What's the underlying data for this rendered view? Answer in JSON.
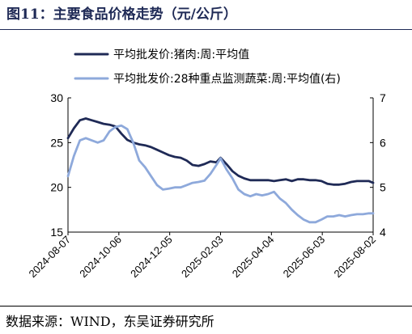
{
  "title": "图11：主要食品价格走势（元/公斤）",
  "source": "数据来源：WIND，东吴证券研究所",
  "chart_data": {
    "type": "line",
    "x_ticks": [
      "2024-08-07",
      "2024-10-06",
      "2024-12-05",
      "2025-02-03",
      "2025-04-04",
      "2025-06-03",
      "2025-08-02"
    ],
    "x_range": [
      "2024-08-07",
      "2025-08-02"
    ],
    "y_left": {
      "min": 15,
      "max": 30,
      "ticks": [
        15,
        20,
        25,
        30
      ]
    },
    "y_right": {
      "min": 4,
      "max": 7,
      "ticks": [
        4,
        5,
        6,
        7
      ]
    },
    "grid": false,
    "legend_position": "top",
    "series": [
      {
        "name": "平均批发价:猪肉:周:平均值",
        "axis": "left",
        "color": "#1f2a56",
        "points": [
          [
            "2024-08-07",
            25.5
          ],
          [
            "2024-08-14",
            26.6
          ],
          [
            "2024-08-21",
            27.5
          ],
          [
            "2024-08-28",
            27.7
          ],
          [
            "2024-09-04",
            27.5
          ],
          [
            "2024-09-11",
            27.3
          ],
          [
            "2024-09-18",
            27.1
          ],
          [
            "2024-09-25",
            27.0
          ],
          [
            "2024-10-02",
            26.8
          ],
          [
            "2024-10-09",
            26.0
          ],
          [
            "2024-10-16",
            25.3
          ],
          [
            "2024-10-23",
            25.0
          ],
          [
            "2024-10-30",
            24.8
          ],
          [
            "2024-11-06",
            24.7
          ],
          [
            "2024-11-13",
            24.5
          ],
          [
            "2024-11-20",
            24.2
          ],
          [
            "2024-11-27",
            23.9
          ],
          [
            "2024-12-04",
            23.6
          ],
          [
            "2024-12-11",
            23.4
          ],
          [
            "2024-12-18",
            23.3
          ],
          [
            "2024-12-25",
            23.0
          ],
          [
            "2025-01-01",
            22.5
          ],
          [
            "2025-01-08",
            22.4
          ],
          [
            "2025-01-15",
            22.6
          ],
          [
            "2025-01-22",
            22.9
          ],
          [
            "2025-01-29",
            22.8
          ],
          [
            "2025-02-03",
            23.3
          ],
          [
            "2025-02-10",
            22.6
          ],
          [
            "2025-02-17",
            21.8
          ],
          [
            "2025-02-24",
            21.3
          ],
          [
            "2025-03-03",
            21.0
          ],
          [
            "2025-03-10",
            20.8
          ],
          [
            "2025-03-17",
            20.8
          ],
          [
            "2025-03-24",
            20.8
          ],
          [
            "2025-03-31",
            20.8
          ],
          [
            "2025-04-07",
            20.7
          ],
          [
            "2025-04-14",
            20.8
          ],
          [
            "2025-04-21",
            20.9
          ],
          [
            "2025-04-28",
            20.7
          ],
          [
            "2025-05-05",
            20.9
          ],
          [
            "2025-05-12",
            20.9
          ],
          [
            "2025-05-19",
            20.8
          ],
          [
            "2025-05-26",
            20.8
          ],
          [
            "2025-06-02",
            20.7
          ],
          [
            "2025-06-09",
            20.4
          ],
          [
            "2025-06-16",
            20.3
          ],
          [
            "2025-06-23",
            20.3
          ],
          [
            "2025-06-30",
            20.4
          ],
          [
            "2025-07-07",
            20.6
          ],
          [
            "2025-07-14",
            20.7
          ],
          [
            "2025-07-21",
            20.7
          ],
          [
            "2025-07-28",
            20.7
          ],
          [
            "2025-08-02",
            20.5
          ]
        ]
      },
      {
        "name": "平均批发价:28种重点监测蔬菜:周:平均值(右)",
        "axis": "right",
        "color": "#8ea9db",
        "points": [
          [
            "2024-08-07",
            5.25
          ],
          [
            "2024-08-14",
            5.7
          ],
          [
            "2024-08-21",
            6.05
          ],
          [
            "2024-08-28",
            6.1
          ],
          [
            "2024-09-04",
            6.05
          ],
          [
            "2024-09-11",
            6.0
          ],
          [
            "2024-09-18",
            6.05
          ],
          [
            "2024-09-25",
            6.25
          ],
          [
            "2024-10-02",
            6.35
          ],
          [
            "2024-10-09",
            6.38
          ],
          [
            "2024-10-16",
            6.3
          ],
          [
            "2024-10-23",
            6.0
          ],
          [
            "2024-10-30",
            5.6
          ],
          [
            "2024-11-06",
            5.45
          ],
          [
            "2024-11-13",
            5.25
          ],
          [
            "2024-11-20",
            5.05
          ],
          [
            "2024-11-27",
            4.95
          ],
          [
            "2024-12-04",
            4.97
          ],
          [
            "2024-12-11",
            5.0
          ],
          [
            "2024-12-18",
            5.0
          ],
          [
            "2024-12-25",
            5.05
          ],
          [
            "2025-01-01",
            5.1
          ],
          [
            "2025-01-08",
            5.12
          ],
          [
            "2025-01-15",
            5.15
          ],
          [
            "2025-01-22",
            5.3
          ],
          [
            "2025-01-29",
            5.5
          ],
          [
            "2025-02-03",
            5.65
          ],
          [
            "2025-02-10",
            5.4
          ],
          [
            "2025-02-17",
            5.2
          ],
          [
            "2025-02-24",
            4.95
          ],
          [
            "2025-03-03",
            4.85
          ],
          [
            "2025-03-10",
            4.8
          ],
          [
            "2025-03-17",
            4.85
          ],
          [
            "2025-03-24",
            4.82
          ],
          [
            "2025-03-31",
            4.85
          ],
          [
            "2025-04-07",
            4.9
          ],
          [
            "2025-04-14",
            4.75
          ],
          [
            "2025-04-21",
            4.65
          ],
          [
            "2025-04-28",
            4.5
          ],
          [
            "2025-05-05",
            4.38
          ],
          [
            "2025-05-12",
            4.28
          ],
          [
            "2025-05-19",
            4.22
          ],
          [
            "2025-05-26",
            4.22
          ],
          [
            "2025-06-02",
            4.28
          ],
          [
            "2025-06-09",
            4.35
          ],
          [
            "2025-06-16",
            4.35
          ],
          [
            "2025-06-23",
            4.38
          ],
          [
            "2025-06-30",
            4.35
          ],
          [
            "2025-07-07",
            4.38
          ],
          [
            "2025-07-14",
            4.4
          ],
          [
            "2025-07-21",
            4.4
          ],
          [
            "2025-07-28",
            4.42
          ],
          [
            "2025-08-02",
            4.42
          ]
        ]
      }
    ]
  }
}
